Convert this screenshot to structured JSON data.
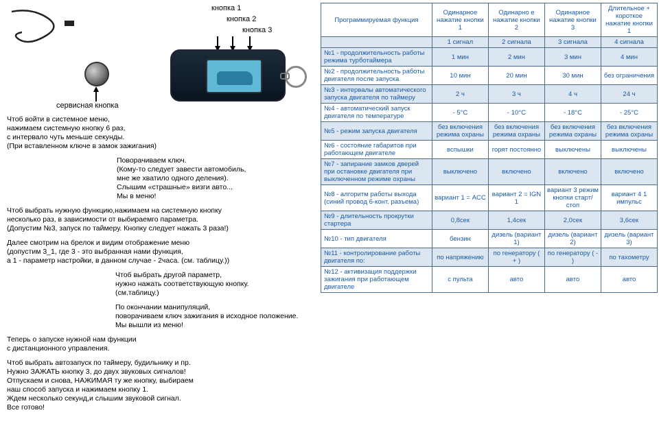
{
  "diagram": {
    "btn1": "кнопка 1",
    "btn2": "кнопка 2",
    "btn3": "кнопка 3",
    "service": "сервисная кнопка"
  },
  "para": {
    "p1": "Чтоб войти в системное меню,\nнажимаем системную кнопку 6 раз,\nс интервало чуть меньше секунды.\n(При вставленном ключе в замок зажигания)",
    "p2": "Поворачиваем ключ.\n(Кому-то следует завести автомобиль,\nмне же хватило одного деления).\nСлышим «страшные» визги авто...\nМы в меню!",
    "p3": "Чтоб выбрать нужную функцию,нажимаем на системную кнопку\nнесколько раз, в зависимости от выбираемго параметра.\n(Допустим №3, запуск по таймеру. Кнопку следует нажать 3 раза!)",
    "p4": "Далее смотрим на брелок и видим отображение меню\n(допустим 3_1, где 3 - это выбранная нами функция,\nа 1 - параметр настройки, в данном случае - 2часа. (см. таблицу.))",
    "p5": "Чтоб выбрать другой параметр,\nнужно нажать соответствующую кнопку.\n(см.таблицу.)",
    "p6": "По окончании манипуляций,\nповорачиваем ключ зажигания в исходное положение.\nМы вышли из меню!",
    "p7": "Теперь о запуске нужной нам функции\nс дистанционного управления.",
    "p8": "Чтоб выбрать автозапуск по таймеру, будильнику и пр.\nНужно ЗАЖАТЬ кнопку 3, до двух звуковых сигналов!\nОтпускаем и снова, НАЖИМАЯ ту же кнопку, выбираем\nнаш способ запуска и нажимаем кнопку 1.\nЖдем несколько секунд,и слышим звуковой сигнал.\nВсе готово!"
  },
  "table": {
    "head": {
      "c1": "Программируемая функция",
      "c2": "Одинарное нажатие кнопки 1",
      "c3": "Одинарно е нажатие кнопки 2",
      "c4": "Одинарное нажатие кнопки 3",
      "c5": "Длительное + короткое нажатие кнопки 1"
    },
    "sig": {
      "c1": "",
      "c2": "1 сигнал",
      "c3": "2 сигнала",
      "c4": "3 сигнала",
      "c5": "4 сигнала"
    },
    "rows": [
      {
        "n": "№1 - продолжительность работы режима турботаймера",
        "v": [
          "1 мин",
          "2 мин",
          "3 мин",
          "4 мин"
        ],
        "alt": true
      },
      {
        "n": "№2 - продолжительность работы двигателя после запуска",
        "v": [
          "10 мин",
          "20 мин",
          "30 мин",
          "без ограничения"
        ],
        "alt": false
      },
      {
        "n": "№3 - интервалы автоматического запуска двигателя по таймеру",
        "v": [
          "2 ч",
          "3 ч",
          "4 ч",
          "24 ч"
        ],
        "alt": true
      },
      {
        "n": "№4 - автоматический запуск двигателя по температуре",
        "v": [
          "- 5°C",
          "- 10°C",
          "- 18°C",
          "- 25°C"
        ],
        "alt": false
      },
      {
        "n": "№5 - режим запуска двигателя",
        "v": [
          "без включения режима охраны",
          "без включения режима охраны",
          "без включения режима охраны",
          "без включения режима охраны"
        ],
        "alt": true
      },
      {
        "n": "№6 - состояние габаритов при работающем двигателе",
        "v": [
          "вспышки",
          "горят постоянно",
          "выключены",
          "выключены"
        ],
        "alt": false
      },
      {
        "n": "№7 - запирание замков дверей при остановке двигателя при выключенном режиме охраны",
        "v": [
          "выключено",
          "включено",
          "включено",
          "включено"
        ],
        "alt": true
      },
      {
        "n": "№8 - алгоритм работы выхода (синий провод 6-конт. разъема)",
        "v": [
          "вариант 1 = ACC",
          "вариант 2 = IGN 1",
          "вариант 3 режим кнопки старт/стоп",
          "вариант 4 1 импульс"
        ],
        "alt": false
      },
      {
        "n": "№9 - длительность прокрутки стартера",
        "v": [
          "0,8сек",
          "1,4сек",
          "2,0сек",
          "3,6сек"
        ],
        "alt": true
      },
      {
        "n": "№10 - тип двигателя",
        "v": [
          "бензин",
          "дизель (вариант 1)",
          "дизель (вариант 2)",
          "дизель (вариант 3)"
        ],
        "alt": false
      },
      {
        "n": "№11 - контролирование работы двигателя по:",
        "v": [
          "по напряжению",
          "по генератору ( + )",
          "по генератору ( - )",
          "по тахометру"
        ],
        "alt": true
      },
      {
        "n": "№12 - активизация поддержки зажигания при работающем двигателе",
        "v": [
          "с пульта",
          "авто",
          "авто",
          "авто"
        ],
        "alt": false
      }
    ]
  },
  "colors": {
    "border": "#4a6a8a",
    "text_blue": "#1a5aa8",
    "alt_bg": "#dbe6f0"
  }
}
